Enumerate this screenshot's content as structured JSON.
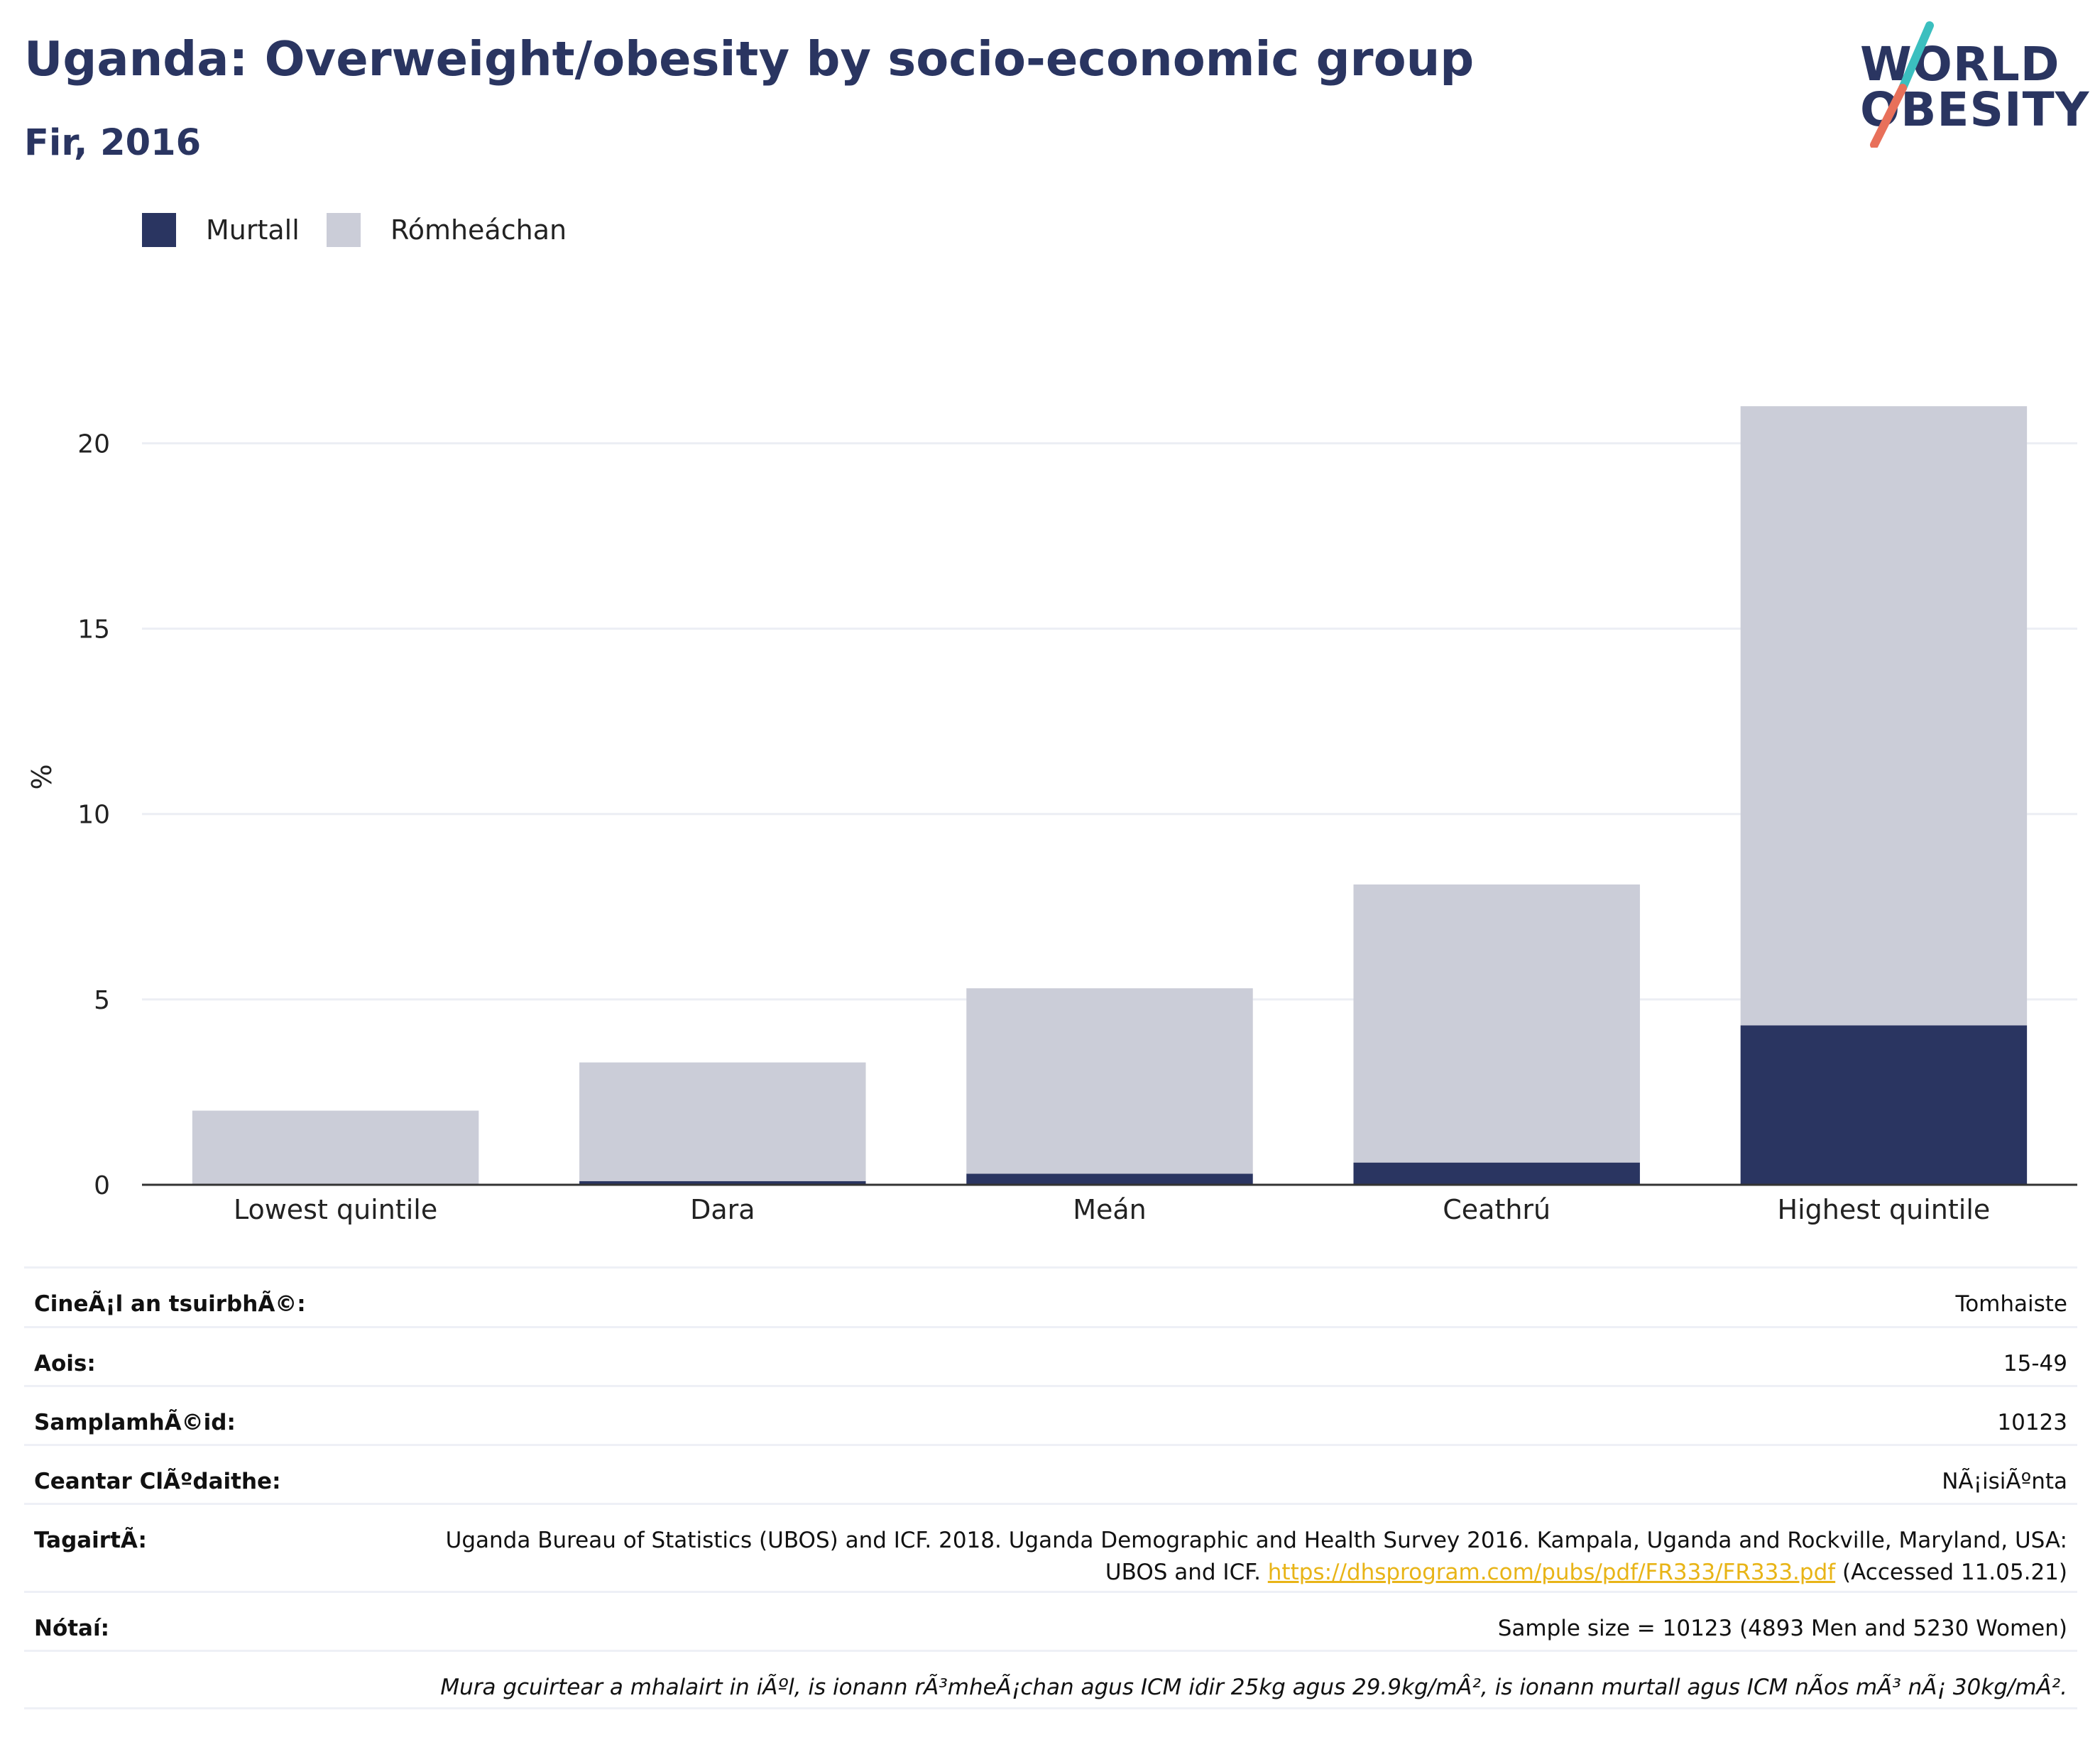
{
  "header": {
    "title": "Uganda: Overweight/obesity by socio-economic group",
    "subtitle": "Fir, 2016"
  },
  "logo": {
    "line1": "WORLD",
    "line2": "OBESITY",
    "colors": {
      "text": "#2a3561",
      "slash_top": "#3bbfbf",
      "slash_bottom": "#e8705a"
    }
  },
  "colors": {
    "obese": "#2a3561",
    "overweight": "#cbcdd8",
    "grid": "#eceef4",
    "axis": "#333333"
  },
  "legend": [
    {
      "label": "Murtall",
      "color": "#2a3561"
    },
    {
      "label": "Rómheáchan",
      "color": "#cbcdd8"
    }
  ],
  "chart_data": {
    "type": "bar",
    "stacked": true,
    "categories": [
      "Lowest quintile",
      "Dara",
      "Meán",
      "Ceathrú",
      "Highest quintile"
    ],
    "series": [
      {
        "name": "Murtall",
        "values": [
          0.0,
          0.1,
          0.3,
          0.6,
          4.3
        ]
      },
      {
        "name": "Rómheáchan",
        "values": [
          2.0,
          3.2,
          5.0,
          7.5,
          16.7
        ]
      }
    ],
    "ylabel": "%",
    "ylim": [
      0,
      22
    ],
    "yticks": [
      0,
      5,
      10,
      15,
      20
    ],
    "grid": true,
    "legend_position": "top-left"
  },
  "info": {
    "rows": [
      {
        "label": "CineÃ¡l an tsuirbhÃ©:",
        "value": "Tomhaiste"
      },
      {
        "label": "Aois:",
        "value": "15-49"
      },
      {
        "label": "SamplamhÃ©id:",
        "value": "10123"
      },
      {
        "label": "Ceantar ClÃºdaithe:",
        "value": "NÃ¡isiÃºnta"
      }
    ],
    "reference": {
      "label": "TagairtÃ:",
      "text_before": "Uganda Bureau of Statistics (UBOS) and ICF. 2018. Uganda Demographic and Health Survey 2016. Kampala, Uganda and Rockville, Maryland, USA: UBOS and ICF. ",
      "link": "https://dhsprogram.com/pubs/pdf/FR333/FR333.pdf",
      "text_after": " (Accessed 11.05.21)"
    },
    "notes": {
      "label": "Nótaí:",
      "value": "Sample size = 10123 (4893 Men and 5230 Women)"
    },
    "footnote": "Mura gcuirtear a mhalairt in iÃºl, is ionann rÃ³mheÃ¡chan agus ICM idir 25kg agus 29.9kg/mÂ², is ionann murtall agus ICM nÃos mÃ³ nÃ¡ 30kg/mÂ²."
  }
}
